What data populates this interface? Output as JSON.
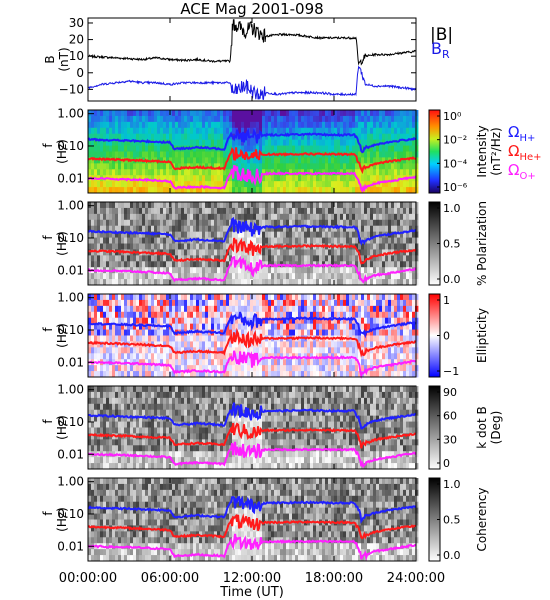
{
  "title": "ACE Mag 2001-098",
  "xlabel": "Time (UT)",
  "x_ticks": [
    "00:00:00",
    "06:00:00",
    "12:00:00",
    "18:00:00",
    "24:00:00"
  ],
  "colors": {
    "B_total": "#000000",
    "B_R": "#1a1ae6",
    "H_plus": "#2020ff",
    "He_plus": "#ff1a1a",
    "O_plus": "#ff20ff"
  },
  "chart_data": [
    {
      "type": "line",
      "panel": "B",
      "ylabel": "B",
      "yunit": "(nT)",
      "y_ticks": [
        "30",
        "20",
        "10",
        "0",
        "−10"
      ],
      "ylim": [
        -17,
        33
      ],
      "x_units": "hours UT",
      "xlim": [
        0,
        24
      ],
      "legend": [
        "|B|",
        "B_R"
      ],
      "series": [
        {
          "name": "|B|",
          "x": [
            0,
            1,
            2,
            3,
            4,
            5,
            6,
            7,
            8,
            9,
            10.4,
            10.6,
            11,
            11.5,
            12,
            12.5,
            13,
            14,
            15,
            16,
            17,
            18,
            19.6,
            19.8,
            20.3,
            21,
            22,
            23,
            24
          ],
          "values": [
            10,
            9.5,
            9,
            8.5,
            8,
            9,
            8,
            7.5,
            8,
            7,
            7,
            30,
            28,
            25,
            27,
            24,
            22,
            23,
            23,
            22,
            21,
            21,
            21,
            5,
            10,
            11,
            11,
            12,
            13
          ]
        },
        {
          "name": "B_R",
          "x": [
            0,
            1,
            2,
            3,
            4,
            5,
            6,
            7,
            8,
            9,
            10.4,
            10.6,
            11,
            11.5,
            12,
            12.5,
            13,
            14,
            15,
            16,
            17,
            18,
            19.6,
            19.8,
            20.3,
            21,
            22,
            23,
            24
          ],
          "values": [
            -9,
            -7,
            -6,
            -5,
            -6,
            -6,
            -7,
            -6,
            -6,
            -6,
            -6,
            -12,
            -10,
            -8,
            -11,
            -14,
            -12,
            -13,
            -12,
            -12,
            -12,
            -13,
            -13,
            5,
            -7,
            -8,
            -8,
            -9,
            -10
          ]
        }
      ]
    },
    {
      "type": "heatmap",
      "panel": "Intensity",
      "ylabel": "f",
      "yunit": "(Hz)",
      "y_ticks": [
        "1.00",
        "0.10",
        "0.01"
      ],
      "colorbar_label": "Intensity",
      "colorbar_unit": "(nT²/Hz)",
      "colorbar_ticks": [
        "10⁰",
        "10⁻²",
        "10⁻⁴",
        "10⁻⁶"
      ],
      "legend": [
        "ΩH+",
        "ΩHe+",
        "ΩO+"
      ]
    },
    {
      "type": "heatmap",
      "panel": "Polarization",
      "ylabel": "f",
      "yunit": "(Hz)",
      "y_ticks": [
        "1.00",
        "0.10",
        "0.01"
      ],
      "colorbar_label": "% Polarization",
      "colorbar_ticks": [
        "1.0",
        "0.5",
        "0.0"
      ]
    },
    {
      "type": "heatmap",
      "panel": "Ellipticity",
      "ylabel": "f",
      "yunit": "(Hz)",
      "y_ticks": [
        "1.00",
        "0.10",
        "0.01"
      ],
      "colorbar_label": "Ellipticity",
      "colorbar_ticks": [
        "1",
        "0",
        "−1"
      ]
    },
    {
      "type": "heatmap",
      "panel": "k dot B",
      "ylabel": "f",
      "yunit": "(Hz)",
      "y_ticks": [
        "1.00",
        "0.10",
        "0.01"
      ],
      "colorbar_label": "k dot B",
      "colorbar_unit": "(Deg)",
      "colorbar_ticks": [
        "90",
        "60",
        "30",
        "0"
      ]
    },
    {
      "type": "heatmap",
      "panel": "Coherency",
      "ylabel": "f",
      "yunit": "(Hz)",
      "y_ticks": [
        "1.00",
        "0.10",
        "0.01"
      ],
      "colorbar_label": "Coherency",
      "colorbar_ticks": [
        "1.0",
        "0.5",
        "0.0"
      ]
    }
  ],
  "gyrofrequency_lines_hz": {
    "x": [
      0,
      2,
      4,
      6,
      6.3,
      8,
      10,
      10.5,
      12,
      13,
      14,
      16,
      18,
      19.5,
      20,
      21,
      22,
      24
    ],
    "H_plus": [
      0.16,
      0.15,
      0.14,
      0.13,
      0.08,
      0.09,
      0.08,
      0.25,
      0.18,
      0.22,
      0.22,
      0.23,
      0.22,
      0.22,
      0.07,
      0.11,
      0.13,
      0.17
    ],
    "He_plus": [
      0.04,
      0.038,
      0.035,
      0.032,
      0.02,
      0.022,
      0.02,
      0.063,
      0.045,
      0.055,
      0.055,
      0.057,
      0.055,
      0.055,
      0.018,
      0.028,
      0.033,
      0.043
    ],
    "O_plus": [
      0.01,
      0.0095,
      0.009,
      0.008,
      0.005,
      0.0055,
      0.005,
      0.016,
      0.011,
      0.014,
      0.014,
      0.014,
      0.014,
      0.014,
      0.0045,
      0.007,
      0.008,
      0.011
    ]
  }
}
